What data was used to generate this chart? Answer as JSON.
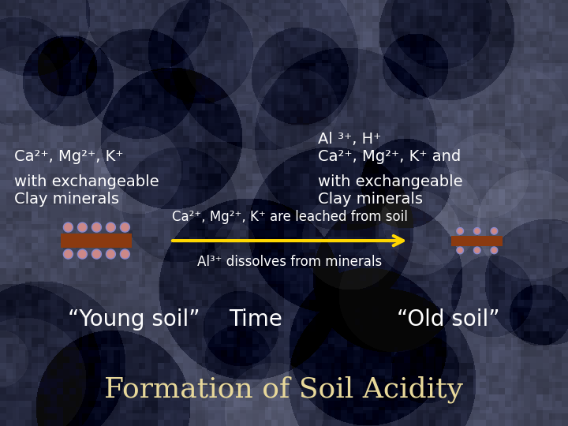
{
  "title": "Formation of Soil Acidity",
  "title_color": "#E8D89A",
  "title_fontsize": 26,
  "background_color": "#2d3140",
  "young_soil_label": "“Young soil”",
  "time_label": "Time",
  "old_soil_label": "“Old soil”",
  "header_fontsize": 20,
  "header_color": "#ffffff",
  "arrow_text_top": "Al³⁺ dissolves from minerals",
  "arrow_text_bottom": "Ca²⁺, Mg²⁺, K⁺ are leached from soil",
  "arrow_color": "#FFD700",
  "arrow_text_color": "#ffffff",
  "left_label1": "Clay minerals",
  "left_label2": "with exchangeable",
  "left_label3": "Ca²⁺, Mg²⁺, K⁺",
  "right_label1": "Clay minerals",
  "right_label2": "with exchangeable",
  "right_label3": "Ca²⁺, Mg²⁺, K⁺ and",
  "right_label4": "Al ³⁺, H⁺",
  "body_fontsize": 14,
  "body_color": "#ffffff",
  "clay_color": "#8B3A10",
  "clay_dot_color": "#cc8888",
  "clay_dot_outline": "#8888cc"
}
